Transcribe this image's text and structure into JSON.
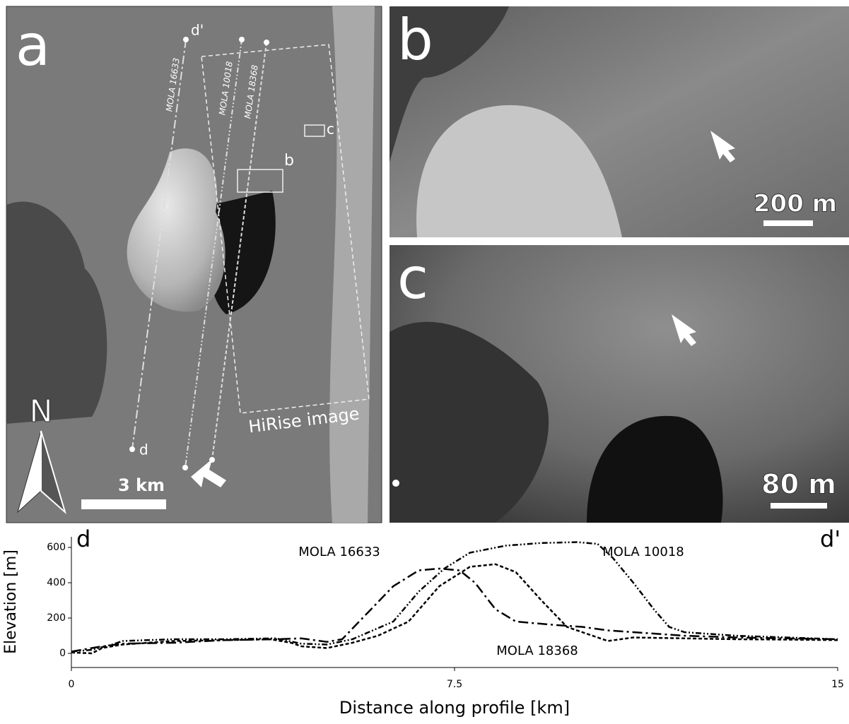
{
  "figure": {
    "panel_a": {
      "label": "a",
      "profile_start": "d'",
      "profile_end": "d",
      "track_labels": [
        "MOLA 16633",
        "MOLA 10018",
        "MOLA 18368"
      ],
      "box_labels": [
        "b",
        "c"
      ],
      "hirise_label": "HiRise image",
      "scale_bar": "3 km",
      "north": "N"
    },
    "panel_b": {
      "label": "b",
      "scale_bar": "200 m"
    },
    "panel_c": {
      "label": "c",
      "scale_bar": "80 m"
    }
  },
  "chart_data": {
    "type": "line",
    "xlabel": "Distance along profile [km]",
    "ylabel": "Elevation [m]",
    "corner_left": "d",
    "corner_right": "d'",
    "xlim": [
      0,
      15
    ],
    "xticks": [
      0,
      7.5,
      15
    ],
    "ylim": [
      -80,
      660
    ],
    "yticks": [
      0,
      200,
      400,
      600
    ],
    "series": [
      {
        "name": "MOLA 16633",
        "color": "#000000",
        "dash": "14 5 3 5",
        "x": [
          0,
          0.5,
          1,
          2,
          3,
          4,
          4.5,
          5,
          5.3,
          5.7,
          6.3,
          6.8,
          7.2,
          7.6,
          7.9,
          8.3,
          8.7,
          9.5,
          10,
          10.5,
          11,
          12,
          13,
          14,
          15
        ],
        "values": [
          10,
          35,
          55,
          60,
          75,
          80,
          85,
          65,
          80,
          200,
          380,
          470,
          480,
          470,
          400,
          250,
          180,
          160,
          150,
          130,
          120,
          100,
          90,
          85,
          80
        ]
      },
      {
        "name": "MOLA 10018",
        "color": "#000000",
        "dash": "8 3 2 3 2 3",
        "x": [
          0,
          0.4,
          0.8,
          1,
          2,
          3,
          4,
          4.5,
          5,
          5.5,
          6.3,
          6.8,
          7.3,
          7.8,
          8.5,
          9.2,
          9.9,
          10.3,
          10.6,
          11,
          11.4,
          11.7,
          12,
          13,
          14,
          15
        ],
        "values": [
          10,
          20,
          50,
          70,
          80,
          80,
          85,
          55,
          50,
          80,
          180,
          350,
          480,
          570,
          610,
          625,
          630,
          620,
          540,
          400,
          250,
          150,
          120,
          100,
          90,
          80
        ]
      },
      {
        "name": "MOLA 18368",
        "color": "#000000",
        "dash": "5 3",
        "x": [
          0,
          0.4,
          0.6,
          1,
          2,
          3,
          3.9,
          4.3,
          4.5,
          5,
          5.5,
          6,
          6.6,
          7.2,
          7.8,
          8.3,
          8.7,
          9.2,
          9.7,
          10,
          10.5,
          11,
          12,
          13,
          14,
          15
        ],
        "values": [
          5,
          0,
          30,
          50,
          70,
          75,
          80,
          60,
          40,
          30,
          60,
          100,
          180,
          380,
          490,
          505,
          460,
          300,
          150,
          120,
          70,
          90,
          85,
          80,
          78,
          75
        ]
      }
    ]
  }
}
